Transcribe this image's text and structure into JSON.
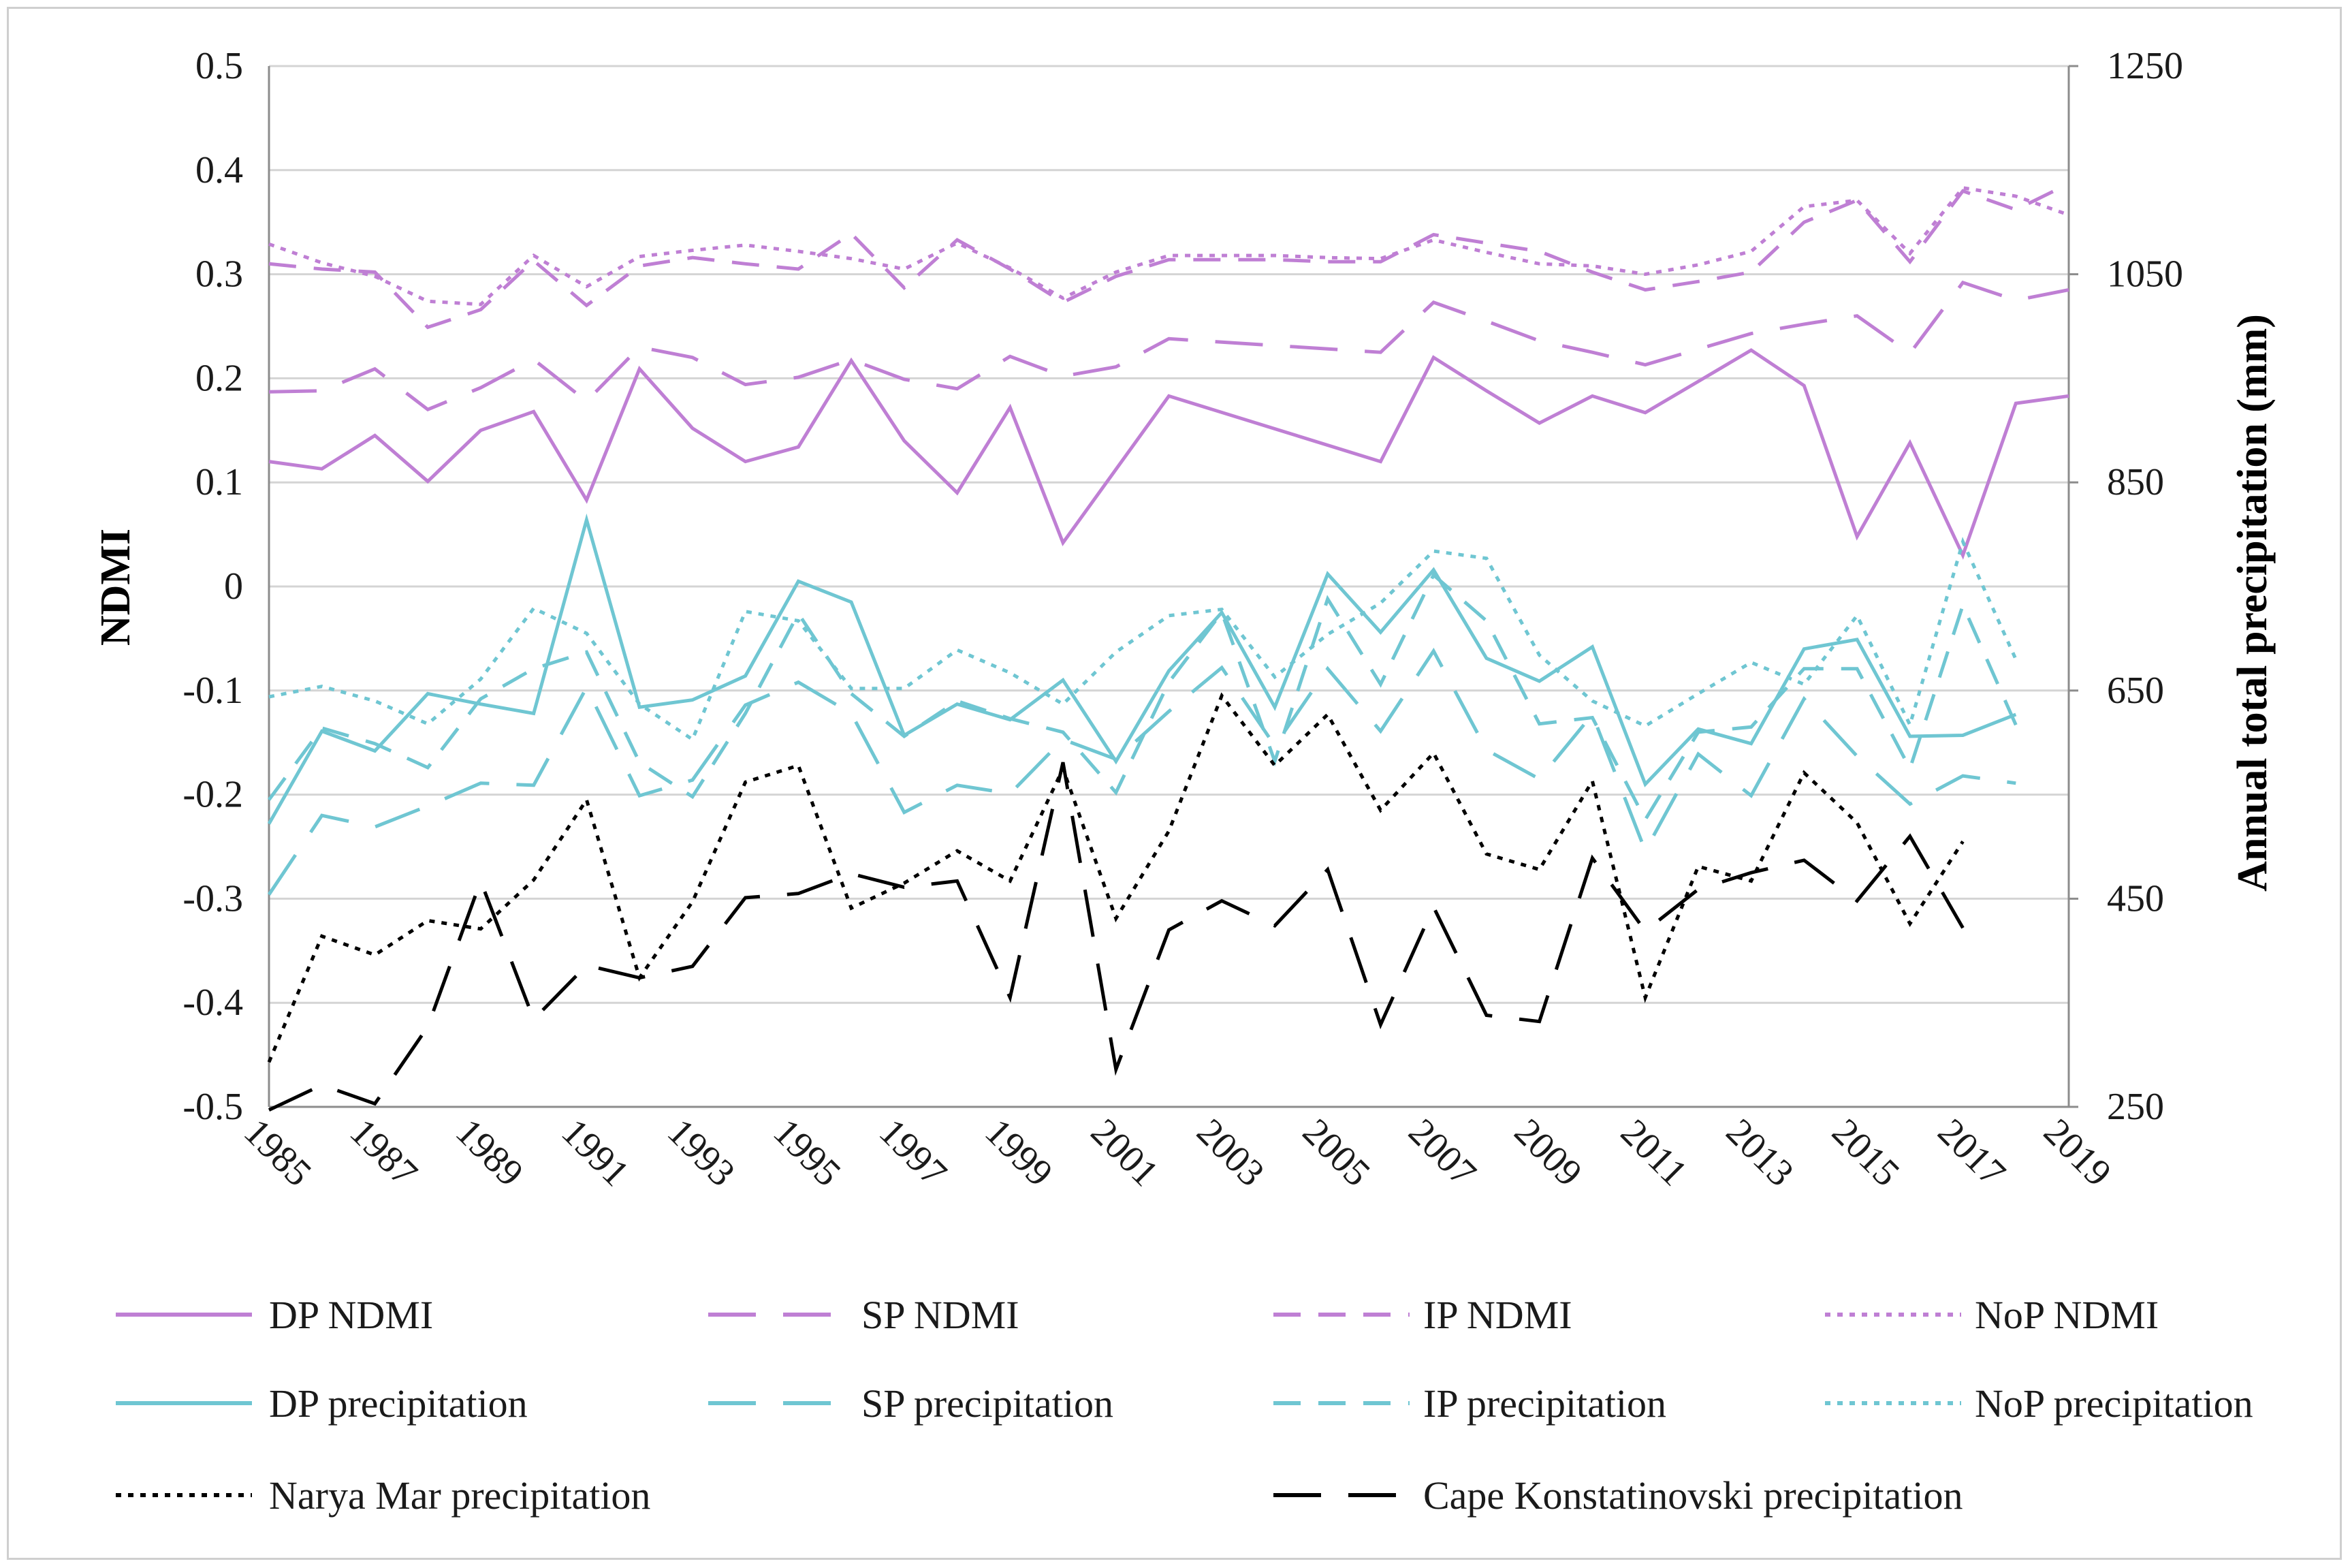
{
  "chart_data": {
    "type": "line",
    "ylabel": "NDMI",
    "y2label": "Annual total precipitation (mm)",
    "ylim": [
      -0.5,
      0.5
    ],
    "y2lim": [
      250,
      1250
    ],
    "yticks": [
      "0.5",
      "0.4",
      "0.3",
      "0.2",
      "0.1",
      "0",
      "-0.1",
      "-0.2",
      "-0.3",
      "-0.4",
      "-0.5"
    ],
    "y2ticks": [
      "1250",
      "1050",
      "850",
      "650",
      "450",
      "250"
    ],
    "xlim": [
      1984.5,
      2019
    ],
    "xticks": [
      "1985",
      "1987",
      "1989",
      "1991",
      "1993",
      "1995",
      "1997",
      "1999",
      "2001",
      "2003",
      "2005",
      "2007",
      "2009",
      "2011",
      "2013",
      "2015",
      "2017",
      "2019"
    ],
    "colors": {
      "ndmi": "#bf7fd4",
      "precip": "#6fc6d2",
      "station": "#000000",
      "grid": "#d4d4d4",
      "axis": "#8c8c8c"
    },
    "series": [
      {
        "name": "DP NDMI",
        "axis": "left",
        "style": "solid",
        "color": "ndmi",
        "x": [
          1985,
          1986,
          1987,
          1988,
          1989,
          1990,
          1991,
          1992,
          1993,
          1994,
          1995,
          1996,
          1997,
          1998,
          1999,
          2000,
          2001,
          2002,
          2003,
          2004,
          2005,
          2006,
          2007,
          2008,
          2009,
          2010,
          2011,
          2012,
          2013,
          2014,
          2015,
          2016,
          2017,
          2018,
          2019
        ],
        "y": [
          0.12,
          0.113,
          0.145,
          0.101,
          0.15,
          0.168,
          0.083,
          0.209,
          0.152,
          0.12,
          0.134,
          0.217,
          0.14,
          0.09,
          0.172,
          0.042,
          null,
          0.183,
          null,
          null,
          null,
          0.12,
          0.22,
          0.188,
          0.157,
          0.183,
          0.167,
          0.197,
          0.227,
          0.193,
          0.048,
          0.138,
          0.03,
          0.176,
          0.183
        ]
      },
      {
        "name": "SP NDMI",
        "axis": "left",
        "style": "longdash",
        "color": "ndmi",
        "x": [
          1985,
          1986,
          1987,
          1988,
          1989,
          1990,
          1991,
          1992,
          1993,
          1994,
          1995,
          1996,
          1997,
          1998,
          1999,
          2000,
          2001,
          2002,
          2003,
          2004,
          2005,
          2006,
          2007,
          2008,
          2009,
          2010,
          2011,
          2012,
          2013,
          2014,
          2015,
          2016,
          2017,
          2018,
          2019
        ],
        "y": [
          0.187,
          0.188,
          0.209,
          0.17,
          0.191,
          0.218,
          0.178,
          0.23,
          0.22,
          0.194,
          0.201,
          0.218,
          0.199,
          0.19,
          0.221,
          0.202,
          0.211,
          0.238,
          null,
          null,
          null,
          0.225,
          0.273,
          0.255,
          0.236,
          0.225,
          0.213,
          0.228,
          0.243,
          0.252,
          0.26,
          0.224,
          0.292,
          0.275,
          0.285
        ]
      },
      {
        "name": "IP NDMI",
        "axis": "left",
        "style": "dash",
        "color": "ndmi",
        "x": [
          1985,
          1986,
          1987,
          1988,
          1989,
          1990,
          1991,
          1992,
          1993,
          1994,
          1995,
          1996,
          1997,
          1998,
          1999,
          2000,
          2001,
          2002,
          2003,
          2004,
          2005,
          2006,
          2007,
          2008,
          2009,
          2010,
          2011,
          2012,
          2013,
          2014,
          2015,
          2016,
          2017,
          2018,
          2019
        ],
        "y": [
          0.31,
          0.305,
          0.302,
          0.249,
          0.266,
          0.313,
          0.27,
          0.308,
          0.316,
          0.31,
          0.305,
          0.339,
          0.287,
          0.333,
          0.305,
          0.273,
          0.298,
          0.314,
          0.314,
          0.314,
          0.312,
          0.312,
          0.338,
          0.33,
          0.322,
          0.302,
          0.285,
          0.293,
          0.302,
          0.35,
          0.371,
          0.312,
          0.38,
          0.362,
          0.387
        ]
      },
      {
        "name": "NoP NDMI",
        "axis": "left",
        "style": "dot",
        "color": "ndmi",
        "x": [
          1985,
          1986,
          1987,
          1988,
          1989,
          1990,
          1991,
          1992,
          1993,
          1994,
          1995,
          1996,
          1997,
          1998,
          1999,
          2000,
          2001,
          2002,
          2003,
          2004,
          2005,
          2006,
          2007,
          2008,
          2009,
          2010,
          2011,
          2012,
          2013,
          2014,
          2015,
          2016,
          2017,
          2018,
          2019
        ],
        "y": [
          0.329,
          0.311,
          0.298,
          0.274,
          0.271,
          0.318,
          0.288,
          0.317,
          0.323,
          0.328,
          0.322,
          0.315,
          0.305,
          0.33,
          0.306,
          0.277,
          0.302,
          0.318,
          0.318,
          0.318,
          0.316,
          0.315,
          0.333,
          0.321,
          0.31,
          0.308,
          0.3,
          0.309,
          0.322,
          0.365,
          0.371,
          0.32,
          0.383,
          0.375,
          0.357
        ]
      },
      {
        "name": "DP precipitation",
        "axis": "right",
        "style": "solid",
        "color": "precip",
        "x": [
          1985,
          1986,
          1987,
          1988,
          1989,
          1990,
          1991,
          1992,
          1993,
          1994,
          1995,
          1996,
          1997,
          1998,
          1999,
          2000,
          2001,
          2002,
          2003,
          2004,
          2005,
          2006,
          2007,
          2008,
          2009,
          2010,
          2011,
          2012,
          2013,
          2014,
          2015,
          2016,
          2017,
          2018
        ],
        "y": [
          522,
          611,
          592,
          647,
          637,
          628,
          814,
          634,
          641,
          664,
          755,
          735,
          607,
          637,
          622,
          660,
          582,
          669,
          725,
          634,
          762,
          706,
          766,
          681,
          659,
          692,
          560,
          613,
          599,
          690,
          699,
          606,
          607,
          627
        ]
      },
      {
        "name": "SP precipitation",
        "axis": "right",
        "style": "longdash",
        "color": "precip",
        "x": [
          1985,
          1986,
          1987,
          1988,
          1989,
          1990,
          1991,
          1992,
          1993,
          1994,
          1995,
          1996,
          1997,
          1998,
          1999,
          2000,
          2001,
          2002,
          2003,
          2004,
          2005,
          2006,
          2007,
          2008,
          2009,
          2010,
          2011,
          2012,
          2013,
          2014,
          2015,
          2016,
          2017,
          2018
        ],
        "y": [
          454,
          530,
          519,
          539,
          561,
          559,
          653,
          549,
          564,
          636,
          658,
          628,
          533,
          559,
          551,
          603,
          584,
          630,
          672,
          597,
          671,
          611,
          688,
          593,
          565,
          627,
          496,
          589,
          549,
          642,
          587,
          541,
          568,
          561
        ]
      },
      {
        "name": "IP precipitation",
        "axis": "right",
        "style": "dash",
        "color": "precip",
        "x": [
          1985,
          1986,
          1987,
          1988,
          1989,
          1990,
          1991,
          1992,
          1993,
          1994,
          1995,
          1996,
          1997,
          1998,
          1999,
          2000,
          2001,
          2002,
          2003,
          2004,
          2005,
          2006,
          2007,
          2008,
          2009,
          2010,
          2011,
          2012,
          2013,
          2014,
          2015,
          2016,
          2017,
          2018
        ],
        "y": [
          545,
          614,
          599,
          576,
          642,
          671,
          687,
          581,
          548,
          628,
          724,
          647,
          606,
          640,
          623,
          610,
          552,
          658,
          725,
          582,
          738,
          656,
          761,
          717,
          618,
          624,
          526,
          610,
          615,
          671,
          671,
          575,
          732,
          617
        ]
      },
      {
        "name": "NoP precipitation",
        "axis": "right",
        "style": "dot",
        "color": "precip",
        "x": [
          1985,
          1986,
          1987,
          1988,
          1989,
          1990,
          1991,
          1992,
          1993,
          1994,
          1995,
          1996,
          1997,
          1998,
          1999,
          2000,
          2001,
          2002,
          2003,
          2004,
          2005,
          2006,
          2007,
          2008,
          2009,
          2010,
          2011,
          2012,
          2013,
          2014,
          2015,
          2016,
          2017,
          2018
        ],
        "y": [
          644,
          654,
          640,
          618,
          661,
          729,
          705,
          637,
          603,
          726,
          717,
          652,
          652,
          689,
          667,
          637,
          687,
          722,
          728,
          663,
          704,
          734,
          784,
          777,
          684,
          640,
          616,
          647,
          677,
          656,
          722,
          617,
          793,
          680
        ]
      },
      {
        "name": "Narya Mar precipitation",
        "axis": "right",
        "style": "dot",
        "color": "station",
        "x": [
          1985,
          1986,
          1987,
          1988,
          1989,
          1990,
          1991,
          1992,
          1993,
          1994,
          1995,
          1996,
          1997,
          1998,
          1999,
          2000,
          2001,
          2002,
          2003,
          2004,
          2005,
          2006,
          2007,
          2008,
          2009,
          2010,
          2011,
          2012,
          2013,
          2014,
          2015,
          2016,
          2017
        ],
        "y": [
          293,
          414,
          396,
          429,
          421,
          468,
          545,
          374,
          447,
          562,
          578,
          441,
          465,
          496,
          467,
          575,
          431,
          515,
          645,
          578,
          627,
          535,
          590,
          493,
          478,
          563,
          355,
          481,
          467,
          571,
          523,
          426,
          505
        ]
      },
      {
        "name": "Cape Konstatinovski precipitation",
        "axis": "right",
        "style": "longdash",
        "color": "station",
        "x": [
          1985,
          1986,
          1987,
          1988,
          1989,
          1990,
          1991,
          1992,
          1993,
          1994,
          1995,
          1996,
          1997,
          1998,
          1999,
          2000,
          2001,
          2002,
          2003,
          2004,
          2005,
          2006,
          2007,
          2008,
          2009,
          2010,
          2011,
          2012,
          2013,
          2014,
          2015,
          2016,
          2017
        ],
        "y": [
          247,
          271,
          253,
          327,
          467,
          334,
          386,
          374,
          385,
          451,
          455,
          474,
          461,
          467,
          355,
          581,
          286,
          420,
          448,
          424,
          478,
          329,
          442,
          338,
          332,
          489,
          419,
          459,
          475,
          487,
          448,
          510,
          422
        ]
      }
    ]
  }
}
